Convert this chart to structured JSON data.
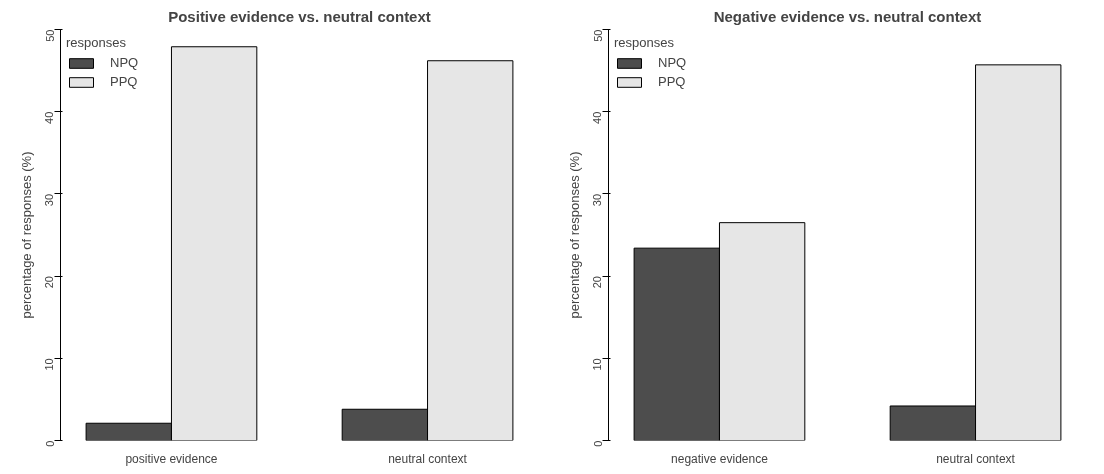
{
  "chart_data": [
    {
      "type": "bar",
      "title": "Positive evidence vs. neutral context",
      "ylabel": "percentage of responses (%)",
      "legend_title": "responses",
      "categories": [
        "positive evidence",
        "neutral context"
      ],
      "series": [
        {
          "name": "NPQ",
          "color": "#4d4d4d",
          "values": [
            2.1,
            3.8
          ]
        },
        {
          "name": "PPQ",
          "color": "#e6e6e6",
          "values": [
            47.9,
            46.2
          ]
        }
      ],
      "ylim": [
        0,
        50
      ],
      "yticks": [
        0,
        10,
        20,
        30,
        40,
        50
      ],
      "grid": false,
      "legend": "top left"
    },
    {
      "type": "bar",
      "title": "Negative evidence vs. neutral context",
      "ylabel": "percentage of responses (%)",
      "legend_title": "responses",
      "categories": [
        "negative evidence",
        "neutral context"
      ],
      "series": [
        {
          "name": "NPQ",
          "color": "#4d4d4d",
          "values": [
            23.4,
            4.2
          ]
        },
        {
          "name": "PPQ",
          "color": "#e6e6e6",
          "values": [
            26.5,
            45.7
          ]
        }
      ],
      "ylim": [
        0,
        50
      ],
      "yticks": [
        0,
        10,
        20,
        30,
        40,
        50
      ],
      "grid": false,
      "legend": "top left"
    }
  ]
}
